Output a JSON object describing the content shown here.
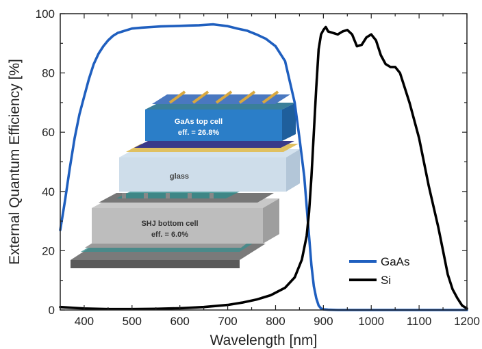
{
  "chart_data": {
    "type": "line",
    "title": "",
    "xlabel": "Wavelength [nm]",
    "ylabel": "External Quantum Efficiency [%]",
    "xlim": [
      350,
      1200
    ],
    "ylim": [
      0,
      100
    ],
    "x_ticks": [
      400,
      500,
      600,
      700,
      800,
      900,
      1000,
      1100,
      1200
    ],
    "y_ticks": [
      0,
      20,
      40,
      60,
      80,
      100
    ],
    "grid": false,
    "legend_position": "bottom-right",
    "series": [
      {
        "name": "GaAs",
        "color": "#1f5fbf",
        "x": [
          350,
          360,
          370,
          380,
          390,
          400,
          410,
          420,
          430,
          440,
          450,
          460,
          470,
          480,
          490,
          500,
          520,
          540,
          560,
          580,
          600,
          620,
          640,
          660,
          670,
          680,
          700,
          720,
          740,
          760,
          780,
          800,
          820,
          840,
          850,
          860,
          865,
          870,
          875,
          880,
          885,
          890,
          895,
          900,
          910,
          930,
          1000,
          1100,
          1200
        ],
        "y": [
          27,
          37,
          48,
          58,
          66,
          72,
          78,
          83,
          86.5,
          89,
          91,
          92.5,
          93.5,
          94,
          94.5,
          95,
          95.3,
          95.5,
          95.7,
          95.8,
          95.9,
          96.0,
          96.1,
          96.3,
          96.4,
          96.2,
          95.8,
          95.0,
          94.3,
          93.0,
          91.5,
          89.0,
          84.0,
          70.0,
          58.0,
          45.0,
          35.0,
          25.0,
          15.0,
          8.0,
          4.0,
          1.5,
          0.5,
          0.2,
          0.1,
          0.0,
          0.0,
          0.0,
          0.0
        ]
      },
      {
        "name": "Si",
        "color": "#000000",
        "x": [
          350,
          400,
          450,
          500,
          550,
          600,
          650,
          700,
          730,
          760,
          790,
          820,
          840,
          855,
          865,
          870,
          875,
          880,
          885,
          890,
          895,
          900,
          905,
          910,
          920,
          930,
          940,
          950,
          960,
          970,
          980,
          990,
          1000,
          1010,
          1020,
          1030,
          1040,
          1050,
          1060,
          1070,
          1080,
          1090,
          1100,
          1110,
          1120,
          1130,
          1140,
          1150,
          1160,
          1170,
          1180,
          1190,
          1200
        ],
        "y": [
          1.0,
          0.5,
          0.3,
          0.3,
          0.4,
          0.6,
          1.0,
          1.7,
          2.5,
          3.5,
          5.0,
          7.5,
          11.0,
          17.0,
          25.0,
          33.0,
          45.0,
          60.0,
          75.0,
          88.0,
          93.0,
          94.5,
          95.5,
          94.0,
          93.5,
          93.0,
          94.0,
          94.5,
          93.0,
          89.0,
          89.5,
          92.0,
          93.0,
          91.0,
          86.0,
          83.0,
          82.0,
          82.0,
          80.0,
          75.0,
          70.0,
          64.0,
          58.0,
          50.0,
          42.0,
          35.0,
          28.0,
          20.0,
          12.0,
          7.0,
          4.0,
          1.5,
          0.5
        ]
      }
    ]
  },
  "inset": {
    "top_cell_label": "GaAs top cell",
    "top_cell_eff": "eff. = 26.8%",
    "glass_label": "glass",
    "bottom_cell_label": "SHJ bottom cell",
    "bottom_cell_eff": "eff. = 6.0%"
  }
}
